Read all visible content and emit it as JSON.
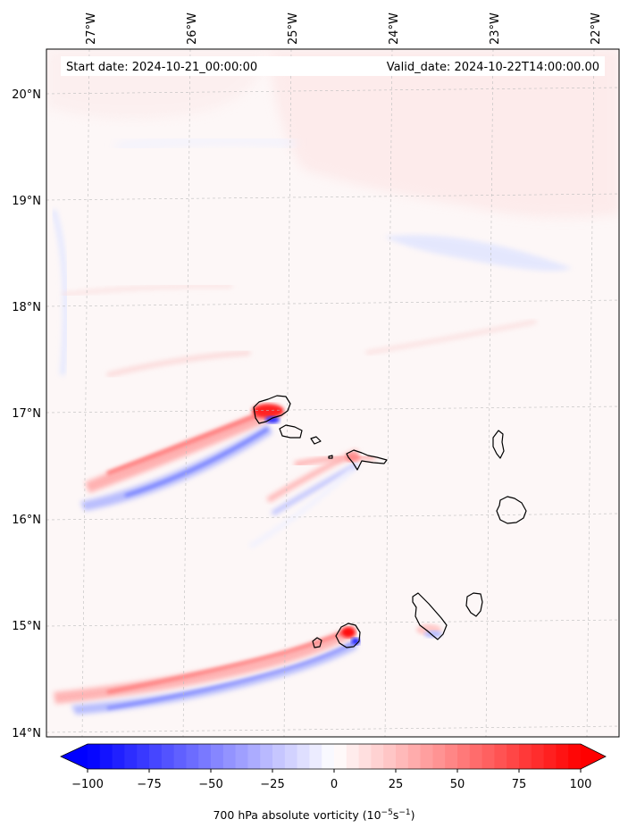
{
  "header": {
    "start_date": "Start date: 2024-10-21_00:00:00",
    "valid_date": "Valid_date: 2024-10-22T14:00:00.00"
  },
  "lon_labels": [
    "27°W",
    "26°W",
    "25°W",
    "24°W",
    "23°W",
    "22°W"
  ],
  "lat_labels": [
    "20°N",
    "19°N",
    "18°N",
    "17°N",
    "16°N",
    "15°N",
    "14°N"
  ],
  "colorbar": {
    "ticks": [
      "−100",
      "−75",
      "−50",
      "−25",
      "0",
      "25",
      "50",
      "75",
      "100"
    ],
    "label_text": "700 hPa absolute vorticity (10",
    "label_exp1": "−5",
    "label_mid": "s",
    "label_exp2": "−1",
    "label_end": ")",
    "min": -100,
    "max": 100,
    "low_color": "#0000ff",
    "high_color": "#ff0000",
    "mid_color": "#ffffff"
  },
  "map": {
    "background_color": "#fff8f8",
    "islands": [
      "Santo Antão",
      "São Vicente",
      "Santa Luzia",
      "São Nicolau",
      "Sal",
      "Boa Vista",
      "Maio",
      "Santiago",
      "Fogo",
      "Brava"
    ]
  }
}
